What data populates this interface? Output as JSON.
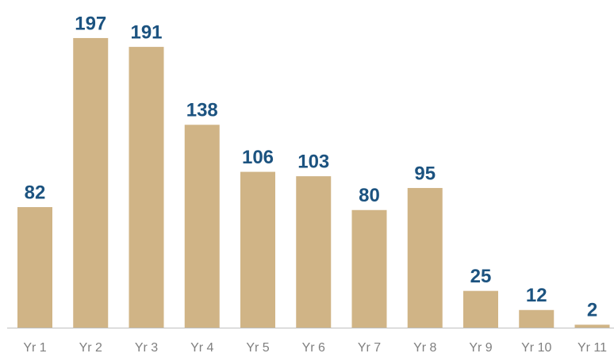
{
  "chart_data": {
    "type": "bar",
    "categories": [
      "Yr 1",
      "Yr 2",
      "Yr 3",
      "Yr 4",
      "Yr 5",
      "Yr 6",
      "Yr 7",
      "Yr 8",
      "Yr 9",
      "Yr 10",
      "Yr 11"
    ],
    "values": [
      82,
      197,
      191,
      138,
      106,
      103,
      80,
      95,
      25,
      12,
      2
    ],
    "color": "#d0b486"
  }
}
